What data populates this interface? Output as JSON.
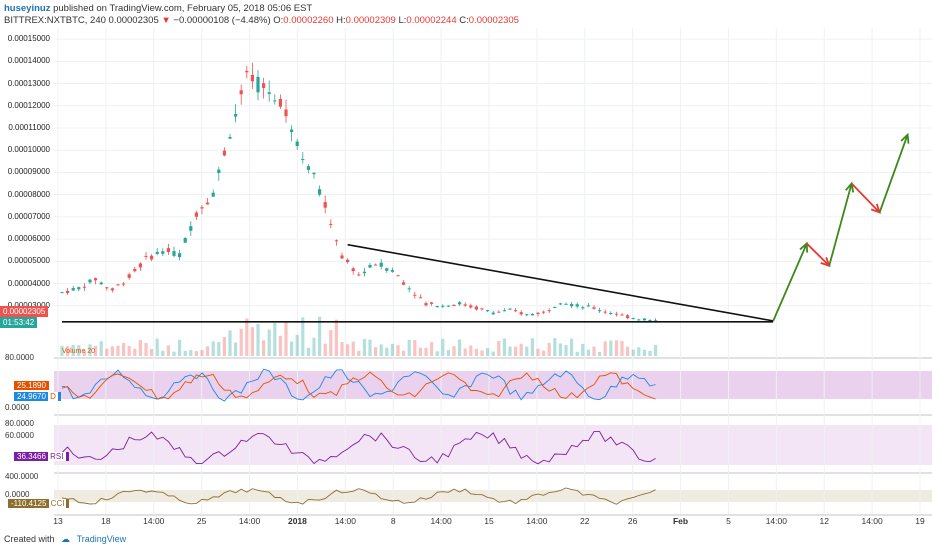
{
  "header": {
    "author": "huseyinuz",
    "published": " published on TradingView.com, February 05, 2018 05:06 EST",
    "symbol": "BITTREX:NXTBTC, 240",
    "last": "0.00002305",
    "change": "−0.00000108 (−4.48%)",
    "o_label": "O:",
    "o_value": "0.00002260",
    "h_label": "H:",
    "h_value": "0.00002309",
    "l_label": "L:",
    "l_value": "0.00002244",
    "c_label": "C:",
    "c_value": "0.00002305"
  },
  "price_tags": {
    "last": "0.00002305",
    "countdown": "01:53:42"
  },
  "volume_label": "Volume 20",
  "stoch": {
    "k_value": "25.1890",
    "d_value": "24.9670",
    "d_label": "D",
    "ticks": [
      "80.0000",
      "0.0000"
    ]
  },
  "rsi": {
    "value": "36.3466",
    "label": "RSI",
    "ticks": [
      "80.0000",
      "60.0000"
    ]
  },
  "cci": {
    "value": "-110.4125",
    "label": "CCI",
    "ticks": [
      "400.0000",
      "0.0000"
    ]
  },
  "footer": {
    "created": "Created with",
    "brand": "TradingView"
  },
  "colors": {
    "up": "#26a69a",
    "down": "#ef5350",
    "arrow_up": "#3a8a1a",
    "arrow_down": "#e53935",
    "stoch_fill": "#e1bee7",
    "rsi_fill": "#f3e5f5",
    "cci_fill": "#efebe0"
  },
  "chart_data": {
    "type": "candlestick",
    "title": "BITTREX:NXTBTC, 240",
    "y_ticks": [
      "0.00015000",
      "0.00014000",
      "0.00013000",
      "0.00012000",
      "0.00011000",
      "0.00010000",
      "0.00009000",
      "0.00008000",
      "0.00007000",
      "0.00006000",
      "0.00005000",
      "0.00004000",
      "0.00003000"
    ],
    "ylim": [
      2e-05,
      0.000155
    ],
    "x_ticks": [
      "13",
      "18",
      "14:00",
      "25",
      "14:00",
      "2018",
      "14:00",
      "8",
      "14:00",
      "15",
      "14:00",
      "22",
      "26",
      "Feb",
      "5",
      "14:00",
      "12",
      "14:00",
      "19"
    ],
    "x_ticks_bold": [
      "2018",
      "Feb"
    ],
    "price_path_approx": [
      [
        0,
        3.6e-05
      ],
      [
        3,
        3.8e-05
      ],
      [
        6,
        4.2e-05
      ],
      [
        9,
        3.7e-05
      ],
      [
        12,
        4.3e-05
      ],
      [
        15,
        5.1e-05
      ],
      [
        18,
        5.5e-05
      ],
      [
        21,
        5.3e-05
      ],
      [
        24,
        7.2e-05
      ],
      [
        27,
        8.1e-05
      ],
      [
        30,
        0.000108
      ],
      [
        33,
        0.000132
      ],
      [
        36,
        0.000128
      ],
      [
        39,
        0.000123
      ],
      [
        42,
        0.000104
      ],
      [
        45,
        8.8e-05
      ],
      [
        48,
        6.8e-05
      ],
      [
        50,
        5.2e-05
      ],
      [
        53,
        4.4e-05
      ],
      [
        56,
        4.9e-05
      ],
      [
        59,
        4.6e-05
      ],
      [
        62,
        3.8e-05
      ],
      [
        65,
        3.1e-05
      ],
      [
        68,
        3e-05
      ],
      [
        71,
        3.1e-05
      ],
      [
        74,
        2.9e-05
      ],
      [
        77,
        2.7e-05
      ],
      [
        80,
        2.8e-05
      ],
      [
        83,
        2.6e-05
      ],
      [
        86,
        2.7e-05
      ],
      [
        89,
        3.2e-05
      ],
      [
        92,
        3e-05
      ],
      [
        95,
        2.9e-05
      ],
      [
        98,
        2.7e-05
      ],
      [
        101,
        2.5e-05
      ],
      [
        104,
        2.4e-05
      ],
      [
        106,
        2.3e-05
      ]
    ],
    "trendlines": [
      {
        "name": "descending resistance",
        "from": [
          51,
          5.75e-05
        ],
        "to": [
          127,
          2.32e-05
        ]
      },
      {
        "name": "horizontal support",
        "from": [
          0,
          2.28e-05
        ],
        "to": [
          127,
          2.28e-05
        ]
      }
    ],
    "projection_path": [
      [
        127,
        2.32e-05
      ],
      [
        133,
        5.8e-05
      ],
      [
        137,
        4.8e-05
      ],
      [
        141,
        8.5e-05
      ],
      [
        146,
        7.2e-05
      ],
      [
        151,
        0.000107
      ]
    ],
    "indicators": [
      "Volume 20",
      "Stoch",
      "RSI",
      "CCI"
    ]
  }
}
